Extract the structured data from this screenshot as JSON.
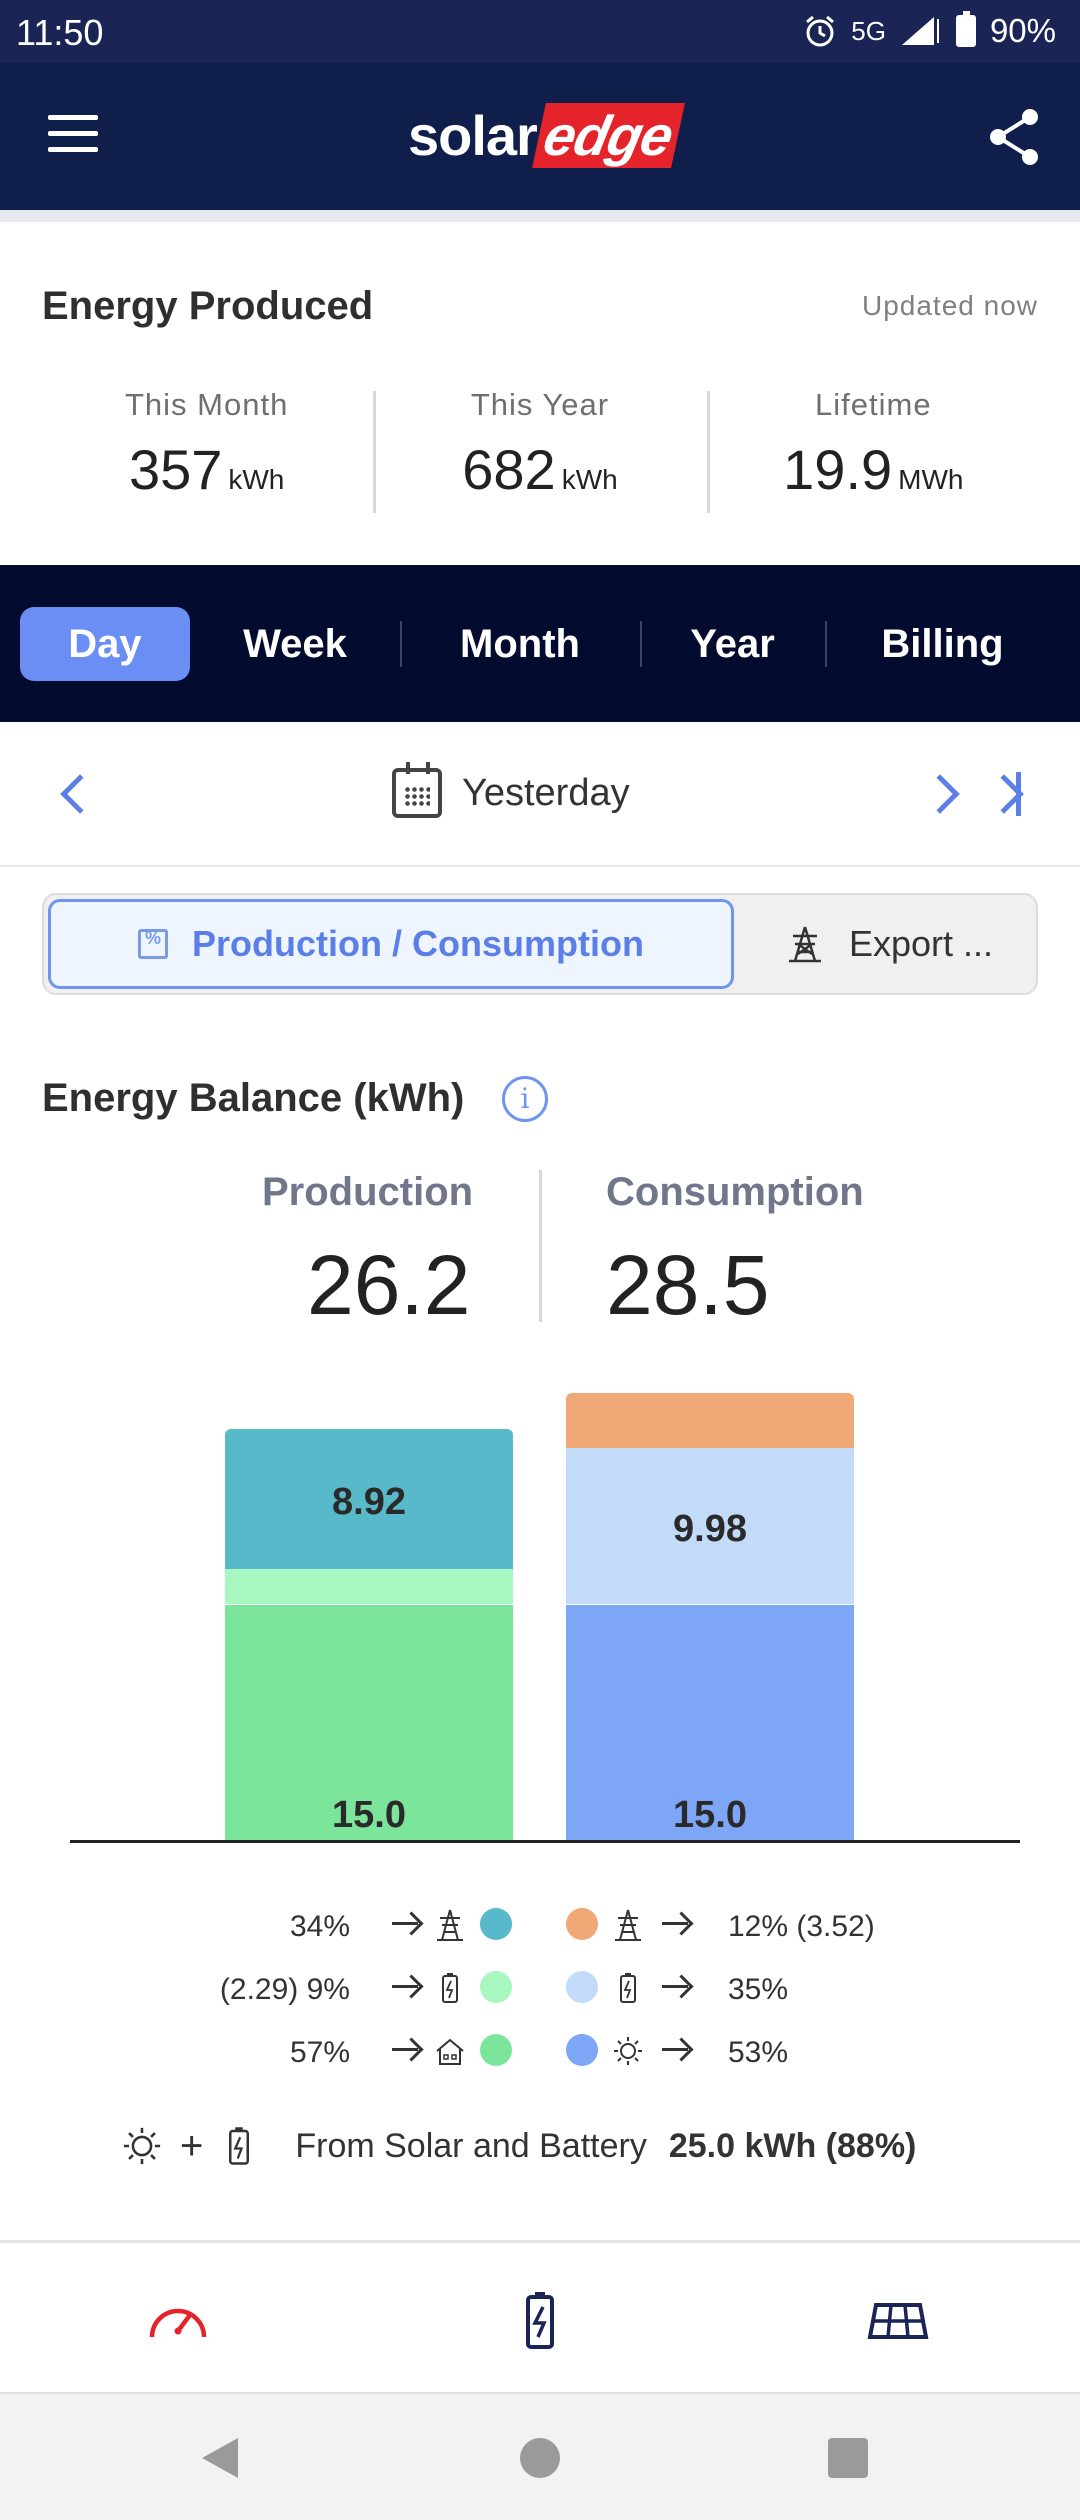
{
  "status_bar": {
    "time": "11:50",
    "network": "5G",
    "battery": "90%"
  },
  "header": {
    "logo_left": "solar",
    "logo_right": "edge",
    "brand_color": "#e5232b"
  },
  "energy_produced": {
    "title": "Energy Produced",
    "updated": "Updated now",
    "stats": [
      {
        "label": "This Month",
        "value": "357",
        "unit": "kWh"
      },
      {
        "label": "This Year",
        "value": "682",
        "unit": "kWh"
      },
      {
        "label": "Lifetime",
        "value": "19.9",
        "unit": "MWh"
      }
    ]
  },
  "tabs": {
    "items": [
      "Day",
      "Week",
      "Month",
      "Year",
      "Billing"
    ],
    "active": "Day"
  },
  "date_nav": {
    "label": "Yesterday"
  },
  "view_toggle": {
    "active_label": "Production / Consumption",
    "inactive_label": "Export ..."
  },
  "energy_balance": {
    "title": "Energy Balance (kWh)",
    "production_label": "Production",
    "production_value": "26.2",
    "consumption_label": "Consumption",
    "consumption_value": "28.5"
  },
  "chart_data": {
    "type": "bar",
    "categories": [
      "Production",
      "Consumption"
    ],
    "series": [
      {
        "bar": "Production",
        "segments": [
          {
            "value": 15.0,
            "label": "15.0",
            "color": "#7be59b"
          },
          {
            "value": 2.29,
            "label": "",
            "color": "#a9f7c0"
          },
          {
            "value": 8.92,
            "label": "8.92",
            "color": "#57b9c9"
          }
        ]
      },
      {
        "bar": "Consumption",
        "segments": [
          {
            "value": 15.0,
            "label": "15.0",
            "color": "#7ea6f7"
          },
          {
            "value": 9.98,
            "label": "9.98",
            "color": "#c2dbf9"
          },
          {
            "value": 3.52,
            "label": "",
            "color": "#f0a877"
          }
        ]
      }
    ],
    "ylim": [
      0,
      30
    ]
  },
  "legend": {
    "left": [
      {
        "text": "34%",
        "icon": "grid-tower-icon",
        "color": "#57b9c9"
      },
      {
        "text": "(2.29) 9%",
        "icon": "battery-icon",
        "color": "#a9f7c0"
      },
      {
        "text": "57%",
        "icon": "home-icon",
        "color": "#7be59b"
      }
    ],
    "right": [
      {
        "text": "12% (3.52)",
        "icon": "grid-tower-icon",
        "color": "#f0a877"
      },
      {
        "text": "35%",
        "icon": "battery-icon",
        "color": "#c2dbf9"
      },
      {
        "text": "53%",
        "icon": "sun-icon",
        "color": "#7ea6f7"
      }
    ]
  },
  "self_consumption": {
    "label": "From Solar and Battery",
    "value": "25.0 kWh (88%)"
  },
  "colors": {
    "accent": "#6b8ef5",
    "header": "#0f1e4a",
    "tabs_bg": "#030b2e"
  }
}
